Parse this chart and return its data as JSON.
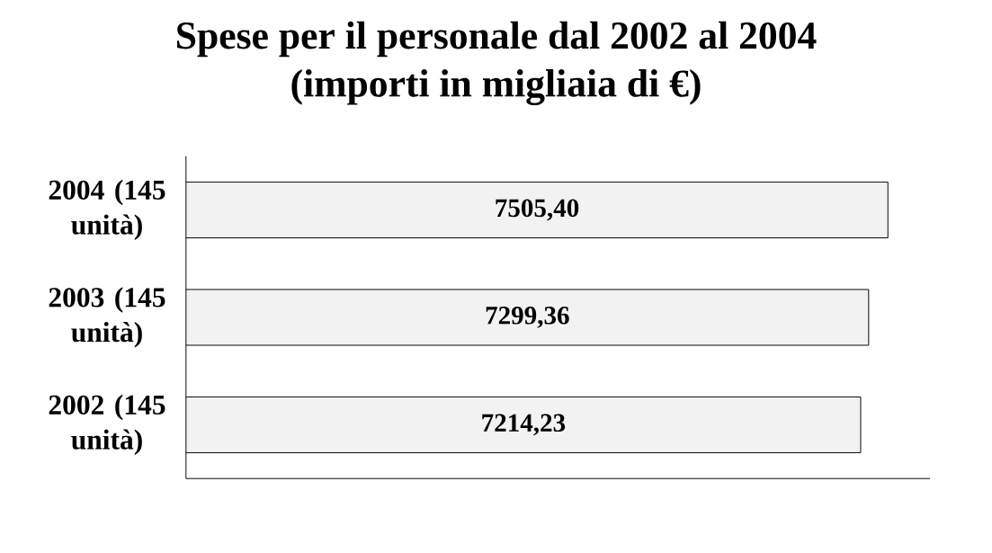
{
  "chart_data": {
    "type": "bar",
    "orientation": "horizontal",
    "title": "Spese per il personale dal 2002 al 2004",
    "subtitle": "(importi in migliaia di €)",
    "categories": [
      "2004 (145 unità)",
      "2003 (145 unità)",
      "2002 (145 unità)"
    ],
    "values": [
      7505.4,
      7299.36,
      7214.23
    ],
    "value_labels": [
      "7505,40",
      "7299,36",
      "7214,23"
    ],
    "color": "#f2f2f2",
    "tick_labels": "y"
  }
}
